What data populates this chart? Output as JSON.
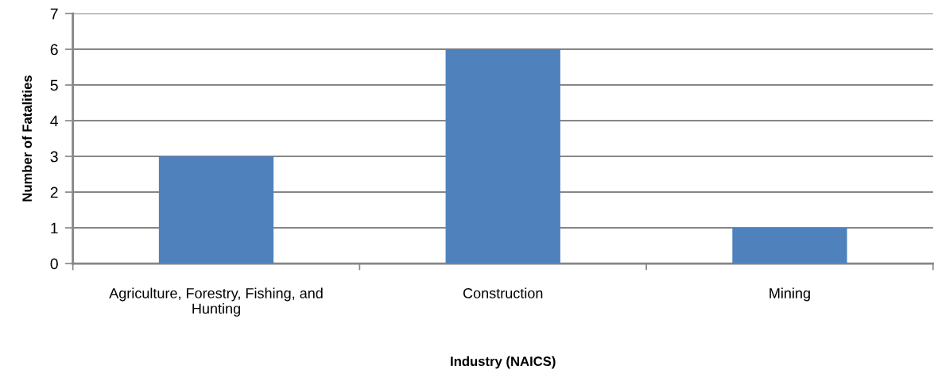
{
  "chart_data": {
    "type": "bar",
    "xlabel": "Industry (NAICS)",
    "ylabel": "Number of Fatalities",
    "categories": [
      "Agriculture, Forestry, Fishing, and\nHunting",
      "Construction",
      "Mining"
    ],
    "values": [
      3,
      6,
      1
    ],
    "color": "#4f81bd",
    "ylim": [
      0,
      7
    ],
    "yticks": [
      0,
      1,
      2,
      3,
      4,
      5,
      6,
      7
    ],
    "grid": "y"
  }
}
